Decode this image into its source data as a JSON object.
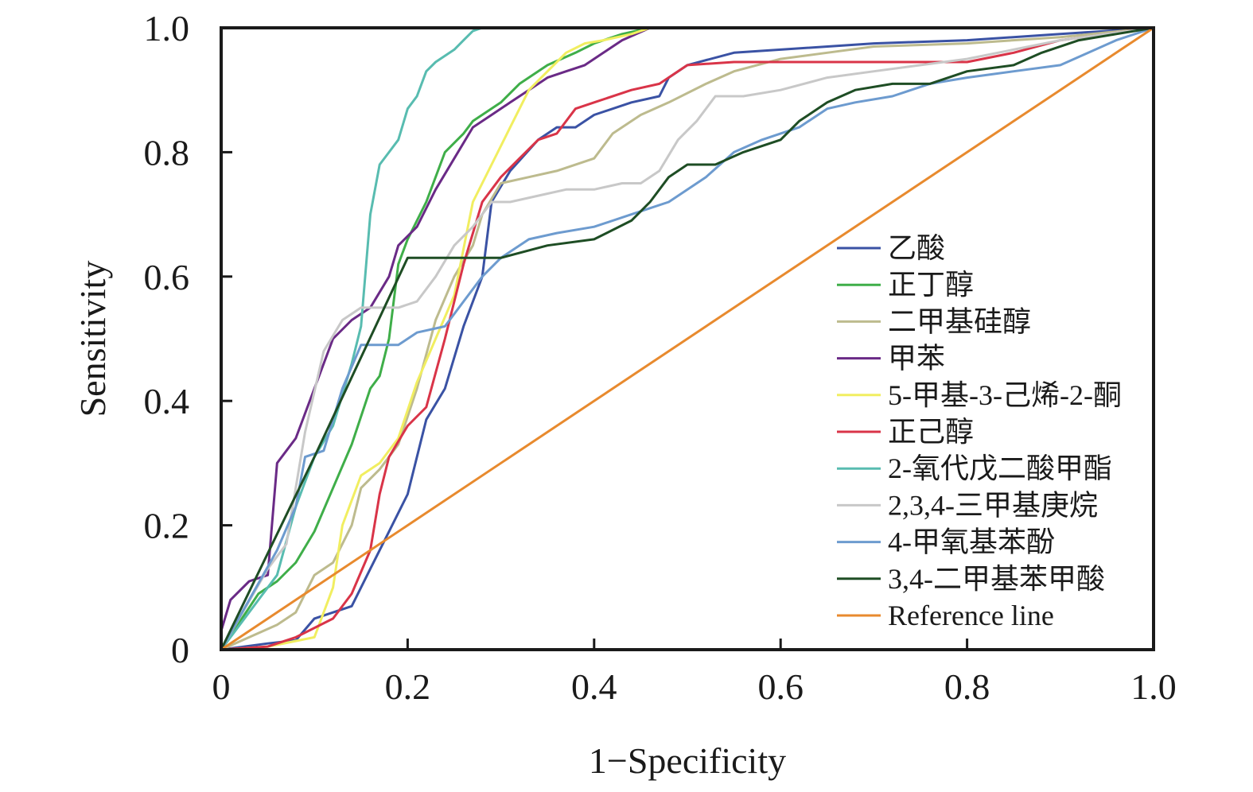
{
  "chart_data": {
    "type": "line",
    "xlabel": "1−Specificity",
    "ylabel": "Sensitivity",
    "xlim": [
      0,
      1
    ],
    "ylim": [
      0,
      1
    ],
    "x_ticks": [
      "0",
      "0.2",
      "0.4",
      "0.6",
      "0.8",
      "1.0"
    ],
    "y_ticks": [
      "0",
      "0.2",
      "0.4",
      "0.6",
      "0.8",
      "1.0"
    ],
    "grid": false,
    "legend_position": "right",
    "series": [
      {
        "name": "乙酸",
        "color": "#3a52a4",
        "points": [
          [
            0,
            0
          ],
          [
            0.05,
            0.01
          ],
          [
            0.08,
            0.015
          ],
          [
            0.1,
            0.05
          ],
          [
            0.14,
            0.07
          ],
          [
            0.16,
            0.13
          ],
          [
            0.18,
            0.19
          ],
          [
            0.2,
            0.25
          ],
          [
            0.22,
            0.37
          ],
          [
            0.24,
            0.42
          ],
          [
            0.26,
            0.52
          ],
          [
            0.28,
            0.6
          ],
          [
            0.29,
            0.72
          ],
          [
            0.31,
            0.77
          ],
          [
            0.34,
            0.82
          ],
          [
            0.36,
            0.84
          ],
          [
            0.38,
            0.84
          ],
          [
            0.4,
            0.86
          ],
          [
            0.44,
            0.88
          ],
          [
            0.47,
            0.89
          ],
          [
            0.48,
            0.92
          ],
          [
            0.5,
            0.94
          ],
          [
            0.55,
            0.96
          ],
          [
            0.6,
            0.965
          ],
          [
            0.7,
            0.975
          ],
          [
            0.8,
            0.98
          ],
          [
            0.9,
            0.99
          ],
          [
            1.0,
            1.0
          ]
        ]
      },
      {
        "name": "正丁醇",
        "color": "#3fae49",
        "points": [
          [
            0,
            0
          ],
          [
            0.04,
            0.09
          ],
          [
            0.06,
            0.11
          ],
          [
            0.08,
            0.14
          ],
          [
            0.1,
            0.19
          ],
          [
            0.12,
            0.26
          ],
          [
            0.14,
            0.33
          ],
          [
            0.16,
            0.42
          ],
          [
            0.17,
            0.44
          ],
          [
            0.18,
            0.5
          ],
          [
            0.19,
            0.62
          ],
          [
            0.2,
            0.66
          ],
          [
            0.22,
            0.72
          ],
          [
            0.24,
            0.8
          ],
          [
            0.26,
            0.83
          ],
          [
            0.27,
            0.85
          ],
          [
            0.3,
            0.88
          ],
          [
            0.32,
            0.91
          ],
          [
            0.35,
            0.94
          ],
          [
            0.38,
            0.96
          ],
          [
            0.4,
            0.975
          ],
          [
            0.43,
            0.99
          ],
          [
            0.46,
            1.0
          ],
          [
            1.0,
            1.0
          ]
        ]
      },
      {
        "name": "二甲基硅醇",
        "color": "#bdbb8e",
        "points": [
          [
            0,
            0
          ],
          [
            0.03,
            0.02
          ],
          [
            0.06,
            0.04
          ],
          [
            0.08,
            0.06
          ],
          [
            0.1,
            0.12
          ],
          [
            0.12,
            0.14
          ],
          [
            0.14,
            0.2
          ],
          [
            0.15,
            0.26
          ],
          [
            0.17,
            0.29
          ],
          [
            0.19,
            0.33
          ],
          [
            0.21,
            0.42
          ],
          [
            0.23,
            0.53
          ],
          [
            0.25,
            0.6
          ],
          [
            0.27,
            0.65
          ],
          [
            0.28,
            0.7
          ],
          [
            0.3,
            0.75
          ],
          [
            0.33,
            0.76
          ],
          [
            0.36,
            0.77
          ],
          [
            0.4,
            0.79
          ],
          [
            0.42,
            0.83
          ],
          [
            0.45,
            0.86
          ],
          [
            0.48,
            0.88
          ],
          [
            0.52,
            0.91
          ],
          [
            0.55,
            0.93
          ],
          [
            0.6,
            0.95
          ],
          [
            0.65,
            0.96
          ],
          [
            0.7,
            0.97
          ],
          [
            0.8,
            0.975
          ],
          [
            0.9,
            0.985
          ],
          [
            1.0,
            1.0
          ]
        ]
      },
      {
        "name": "甲苯",
        "color": "#6a2a86",
        "points": [
          [
            0,
            0.03
          ],
          [
            0.01,
            0.08
          ],
          [
            0.03,
            0.11
          ],
          [
            0.05,
            0.12
          ],
          [
            0.06,
            0.3
          ],
          [
            0.07,
            0.32
          ],
          [
            0.08,
            0.34
          ],
          [
            0.1,
            0.42
          ],
          [
            0.12,
            0.5
          ],
          [
            0.14,
            0.53
          ],
          [
            0.16,
            0.55
          ],
          [
            0.18,
            0.6
          ],
          [
            0.19,
            0.65
          ],
          [
            0.21,
            0.68
          ],
          [
            0.23,
            0.74
          ],
          [
            0.25,
            0.79
          ],
          [
            0.27,
            0.84
          ],
          [
            0.29,
            0.86
          ],
          [
            0.31,
            0.88
          ],
          [
            0.33,
            0.9
          ],
          [
            0.35,
            0.92
          ],
          [
            0.37,
            0.93
          ],
          [
            0.39,
            0.94
          ],
          [
            0.41,
            0.96
          ],
          [
            0.43,
            0.98
          ],
          [
            0.46,
            1.0
          ],
          [
            1.0,
            1.0
          ]
        ]
      },
      {
        "name": "5-甲基-3-己烯-2-酮",
        "color": "#f1ee60",
        "points": [
          [
            0,
            0
          ],
          [
            0.05,
            0.005
          ],
          [
            0.1,
            0.02
          ],
          [
            0.12,
            0.1
          ],
          [
            0.13,
            0.2
          ],
          [
            0.15,
            0.28
          ],
          [
            0.17,
            0.3
          ],
          [
            0.19,
            0.34
          ],
          [
            0.21,
            0.43
          ],
          [
            0.23,
            0.5
          ],
          [
            0.25,
            0.57
          ],
          [
            0.27,
            0.72
          ],
          [
            0.29,
            0.78
          ],
          [
            0.31,
            0.84
          ],
          [
            0.33,
            0.9
          ],
          [
            0.35,
            0.93
          ],
          [
            0.37,
            0.96
          ],
          [
            0.39,
            0.975
          ],
          [
            0.41,
            0.98
          ],
          [
            0.44,
            0.99
          ],
          [
            0.46,
            1.0
          ],
          [
            1.0,
            1.0
          ]
        ]
      },
      {
        "name": "正己醇",
        "color": "#d93448",
        "points": [
          [
            0,
            0
          ],
          [
            0.05,
            0.005
          ],
          [
            0.08,
            0.02
          ],
          [
            0.12,
            0.05
          ],
          [
            0.14,
            0.09
          ],
          [
            0.16,
            0.16
          ],
          [
            0.17,
            0.25
          ],
          [
            0.18,
            0.31
          ],
          [
            0.2,
            0.36
          ],
          [
            0.22,
            0.39
          ],
          [
            0.24,
            0.5
          ],
          [
            0.26,
            0.62
          ],
          [
            0.28,
            0.72
          ],
          [
            0.3,
            0.76
          ],
          [
            0.32,
            0.79
          ],
          [
            0.34,
            0.82
          ],
          [
            0.36,
            0.83
          ],
          [
            0.38,
            0.87
          ],
          [
            0.4,
            0.88
          ],
          [
            0.44,
            0.9
          ],
          [
            0.47,
            0.91
          ],
          [
            0.5,
            0.94
          ],
          [
            0.55,
            0.945
          ],
          [
            0.6,
            0.945
          ],
          [
            0.7,
            0.945
          ],
          [
            0.8,
            0.945
          ],
          [
            0.85,
            0.96
          ],
          [
            0.9,
            0.98
          ],
          [
            0.95,
            0.99
          ],
          [
            1.0,
            1.0
          ]
        ]
      },
      {
        "name": "2-氧代戊二酸甲酯",
        "color": "#58bcb0",
        "points": [
          [
            0,
            0
          ],
          [
            0.04,
            0.08
          ],
          [
            0.06,
            0.12
          ],
          [
            0.08,
            0.23
          ],
          [
            0.1,
            0.31
          ],
          [
            0.12,
            0.36
          ],
          [
            0.13,
            0.41
          ],
          [
            0.14,
            0.46
          ],
          [
            0.15,
            0.52
          ],
          [
            0.16,
            0.7
          ],
          [
            0.17,
            0.78
          ],
          [
            0.18,
            0.8
          ],
          [
            0.19,
            0.82
          ],
          [
            0.2,
            0.87
          ],
          [
            0.21,
            0.89
          ],
          [
            0.22,
            0.93
          ],
          [
            0.23,
            0.945
          ],
          [
            0.25,
            0.965
          ],
          [
            0.26,
            0.98
          ],
          [
            0.27,
            0.995
          ],
          [
            0.28,
            1.0
          ],
          [
            1.0,
            1.0
          ]
        ]
      },
      {
        "name": "2,3,4-三甲基庚烷",
        "color": "#c8c8c8",
        "points": [
          [
            0,
            0
          ],
          [
            0.05,
            0.13
          ],
          [
            0.07,
            0.17
          ],
          [
            0.09,
            0.35
          ],
          [
            0.11,
            0.48
          ],
          [
            0.13,
            0.53
          ],
          [
            0.15,
            0.55
          ],
          [
            0.17,
            0.55
          ],
          [
            0.19,
            0.55
          ],
          [
            0.21,
            0.56
          ],
          [
            0.23,
            0.6
          ],
          [
            0.25,
            0.65
          ],
          [
            0.27,
            0.68
          ],
          [
            0.29,
            0.72
          ],
          [
            0.31,
            0.72
          ],
          [
            0.34,
            0.73
          ],
          [
            0.37,
            0.74
          ],
          [
            0.4,
            0.74
          ],
          [
            0.43,
            0.75
          ],
          [
            0.45,
            0.75
          ],
          [
            0.47,
            0.77
          ],
          [
            0.49,
            0.82
          ],
          [
            0.51,
            0.85
          ],
          [
            0.53,
            0.89
          ],
          [
            0.56,
            0.89
          ],
          [
            0.6,
            0.9
          ],
          [
            0.65,
            0.92
          ],
          [
            0.7,
            0.93
          ],
          [
            0.8,
            0.95
          ],
          [
            0.9,
            0.98
          ],
          [
            1.0,
            1.0
          ]
        ]
      },
      {
        "name": "4-甲氧基苯酚",
        "color": "#6d9bcf",
        "points": [
          [
            0,
            0
          ],
          [
            0.03,
            0.08
          ],
          [
            0.06,
            0.16
          ],
          [
            0.08,
            0.23
          ],
          [
            0.09,
            0.31
          ],
          [
            0.11,
            0.32
          ],
          [
            0.13,
            0.42
          ],
          [
            0.15,
            0.49
          ],
          [
            0.17,
            0.49
          ],
          [
            0.19,
            0.49
          ],
          [
            0.21,
            0.51
          ],
          [
            0.24,
            0.52
          ],
          [
            0.26,
            0.56
          ],
          [
            0.28,
            0.6
          ],
          [
            0.3,
            0.63
          ],
          [
            0.33,
            0.66
          ],
          [
            0.36,
            0.67
          ],
          [
            0.4,
            0.68
          ],
          [
            0.44,
            0.7
          ],
          [
            0.48,
            0.72
          ],
          [
            0.52,
            0.76
          ],
          [
            0.55,
            0.8
          ],
          [
            0.58,
            0.82
          ],
          [
            0.62,
            0.84
          ],
          [
            0.65,
            0.87
          ],
          [
            0.68,
            0.88
          ],
          [
            0.72,
            0.89
          ],
          [
            0.76,
            0.91
          ],
          [
            0.8,
            0.92
          ],
          [
            0.85,
            0.93
          ],
          [
            0.9,
            0.94
          ],
          [
            0.93,
            0.96
          ],
          [
            0.96,
            0.98
          ],
          [
            1.0,
            1.0
          ]
        ]
      },
      {
        "name": "3,4-二甲基苯甲酸",
        "color": "#1e4d24",
        "points": [
          [
            0,
            0
          ],
          [
            0.1,
            0.31
          ],
          [
            0.2,
            0.63
          ],
          [
            0.3,
            0.63
          ],
          [
            0.35,
            0.65
          ],
          [
            0.4,
            0.66
          ],
          [
            0.44,
            0.69
          ],
          [
            0.46,
            0.72
          ],
          [
            0.48,
            0.76
          ],
          [
            0.5,
            0.78
          ],
          [
            0.53,
            0.78
          ],
          [
            0.56,
            0.8
          ],
          [
            0.6,
            0.82
          ],
          [
            0.62,
            0.85
          ],
          [
            0.65,
            0.88
          ],
          [
            0.68,
            0.9
          ],
          [
            0.72,
            0.91
          ],
          [
            0.76,
            0.91
          ],
          [
            0.8,
            0.93
          ],
          [
            0.85,
            0.94
          ],
          [
            0.88,
            0.96
          ],
          [
            0.92,
            0.98
          ],
          [
            0.96,
            0.99
          ],
          [
            1.0,
            1.0
          ]
        ]
      },
      {
        "name": "Reference line",
        "color": "#e88a2e",
        "points": [
          [
            0,
            0
          ],
          [
            1.0,
            1.0
          ]
        ]
      }
    ]
  }
}
